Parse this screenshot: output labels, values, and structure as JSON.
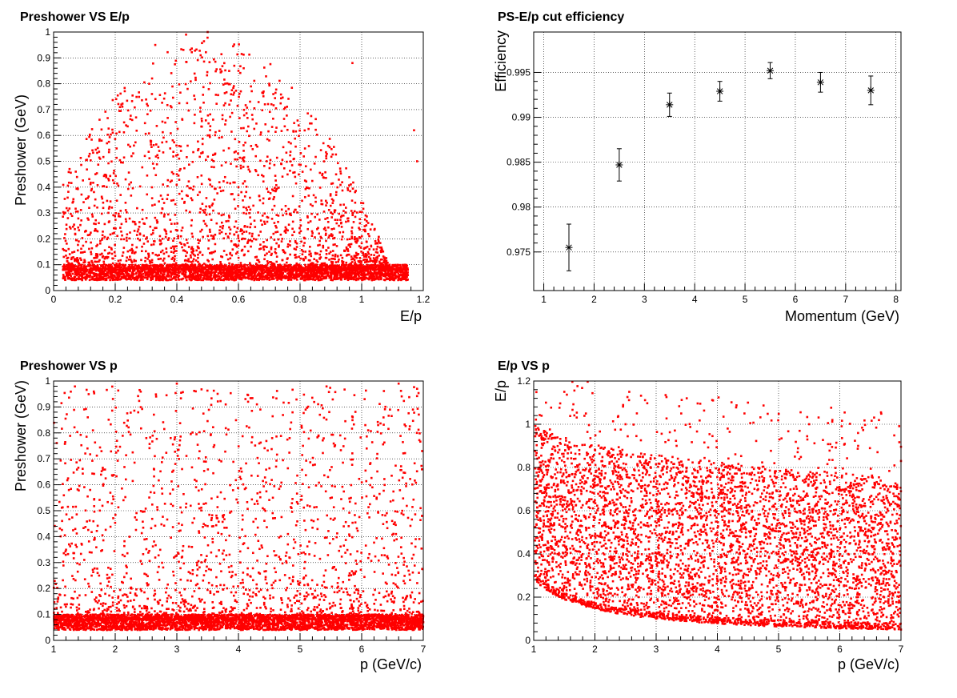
{
  "chart_data": [
    {
      "type": "scatter",
      "title": "Preshower VS E/p",
      "xlabel": "E/p",
      "ylabel": "Preshower (GeV)",
      "xlim": [
        0,
        1.2
      ],
      "ylim": [
        0,
        1
      ],
      "xticks": [
        "0",
        "0.2",
        "0.4",
        "0.6",
        "0.8",
        "1",
        "1.2"
      ],
      "yticks": [
        "0",
        "0.1",
        "0.2",
        "0.3",
        "0.4",
        "0.5",
        "0.6",
        "0.7",
        "0.8",
        "0.9",
        "1"
      ],
      "grid": true,
      "marker_color": "#ff0000",
      "series": [
        {
          "values_summary": "dense band 0.04-0.1 GeV for E/p 0.03-1.15; spread peaking near E/p 0.5",
          "points": [
            [
              0.05,
              0.06
            ],
            [
              0.1,
              0.07
            ],
            [
              0.15,
              0.05
            ],
            [
              0.2,
              0.08
            ],
            [
              0.25,
              0.12
            ],
            [
              0.3,
              0.2
            ],
            [
              0.35,
              0.3
            ],
            [
              0.4,
              0.45
            ],
            [
              0.45,
              0.35
            ],
            [
              0.5,
              0.6
            ],
            [
              0.55,
              0.25
            ],
            [
              0.6,
              0.4
            ],
            [
              0.65,
              0.2
            ],
            [
              0.7,
              0.15
            ],
            [
              0.75,
              0.1
            ],
            [
              0.8,
              0.08
            ],
            [
              0.85,
              0.06
            ],
            [
              0.9,
              0.07
            ],
            [
              0.95,
              0.05
            ],
            [
              1.0,
              0.06
            ],
            [
              1.05,
              0.05
            ],
            [
              1.1,
              0.07
            ],
            [
              1.15,
              0.06
            ],
            [
              0.33,
              0.95
            ],
            [
              0.43,
              0.99
            ],
            [
              0.5,
              1.0
            ],
            [
              0.6,
              0.85
            ],
            [
              0.7,
              0.8
            ],
            [
              0.97,
              0.88
            ],
            [
              1.17,
              0.62
            ],
            [
              1.18,
              0.5
            ]
          ]
        }
      ]
    },
    {
      "type": "scatter",
      "title": "PS-E/p cut efficiency",
      "xlabel": "Momentum (GeV)",
      "ylabel": "Efficiency",
      "xlim": [
        0.8,
        8.1
      ],
      "ylim": [
        0.9707,
        0.9995
      ],
      "xticks": [
        "1",
        "2",
        "3",
        "4",
        "5",
        "6",
        "7",
        "8"
      ],
      "yticks": [
        "0.975",
        "0.98",
        "0.985",
        "0.99",
        "0.995"
      ],
      "grid": true,
      "marker": "star",
      "series": [
        {
          "x": [
            1.5,
            2.5,
            3.5,
            4.5,
            5.5,
            6.5,
            7.5
          ],
          "y": [
            0.9755,
            0.9847,
            0.9914,
            0.9929,
            0.9952,
            0.9939,
            0.993
          ],
          "err": [
            0.0026,
            0.0018,
            0.0013,
            0.0011,
            0.0009,
            0.0011,
            0.0016
          ]
        }
      ]
    },
    {
      "type": "scatter",
      "title": "Preshower VS p",
      "xlabel": "p (GeV/c)",
      "ylabel": "Preshower (GeV)",
      "xlim": [
        1,
        7
      ],
      "ylim": [
        0,
        1
      ],
      "xticks": [
        "1",
        "2",
        "3",
        "4",
        "5",
        "6",
        "7"
      ],
      "yticks": [
        "0",
        "0.1",
        "0.2",
        "0.3",
        "0.4",
        "0.5",
        "0.6",
        "0.7",
        "0.8",
        "0.9",
        "1"
      ],
      "grid": true,
      "marker_color": "#ff0000",
      "series": [
        {
          "values_summary": "dense band 0.04-0.1 GeV across p 1-7; sparse tail up to 1",
          "points": [
            [
              1.2,
              0.06
            ],
            [
              1.5,
              0.07
            ],
            [
              2.0,
              0.08
            ],
            [
              2.5,
              0.06
            ],
            [
              3.0,
              0.07
            ],
            [
              3.5,
              0.05
            ],
            [
              4.0,
              0.08
            ],
            [
              4.5,
              0.07
            ],
            [
              5.0,
              0.06
            ],
            [
              5.5,
              0.07
            ],
            [
              6.0,
              0.06
            ],
            [
              6.5,
              0.08
            ],
            [
              7.0,
              0.07
            ],
            [
              1.55,
              0.74
            ],
            [
              2.9,
              0.78
            ],
            [
              3.0,
              0.99
            ],
            [
              4.3,
              0.91
            ],
            [
              6.6,
              0.99
            ],
            [
              6.9,
              0.97
            ],
            [
              5.3,
              0.79
            ]
          ]
        }
      ]
    },
    {
      "type": "scatter",
      "title": "E/p VS p",
      "xlabel": "p (GeV/c)",
      "ylabel": "E/p",
      "xlim": [
        1,
        7
      ],
      "ylim": [
        0,
        1.2
      ],
      "xticks": [
        "1",
        "2",
        "3",
        "4",
        "5",
        "6",
        "7"
      ],
      "yticks": [
        "0",
        "0.2",
        "0.4",
        "0.6",
        "0.8",
        "1",
        "1.2"
      ],
      "grid": true,
      "marker_color": "#ff0000",
      "series": [
        {
          "values_summary": "dense cloud E/p 0.05-0.85 over p 1-7 with lower edge ~0.3/p, upper ~1 near p=1",
          "points": [
            [
              1.1,
              0.3
            ],
            [
              1.5,
              0.2
            ],
            [
              2.0,
              0.15
            ],
            [
              3.0,
              0.1
            ],
            [
              4.0,
              0.08
            ],
            [
              5.0,
              0.07
            ],
            [
              6.0,
              0.06
            ],
            [
              7.0,
              0.05
            ],
            [
              1.2,
              1.1
            ],
            [
              1.5,
              1.15
            ],
            [
              2.5,
              1.0
            ],
            [
              3.5,
              1.12
            ],
            [
              4.5,
              1.1
            ],
            [
              5.5,
              1.0
            ],
            [
              6.3,
              0.9
            ],
            [
              7.0,
              0.83
            ],
            [
              4.0,
              0.5
            ],
            [
              3.0,
              0.6
            ],
            [
              5.0,
              0.4
            ]
          ]
        }
      ]
    }
  ]
}
